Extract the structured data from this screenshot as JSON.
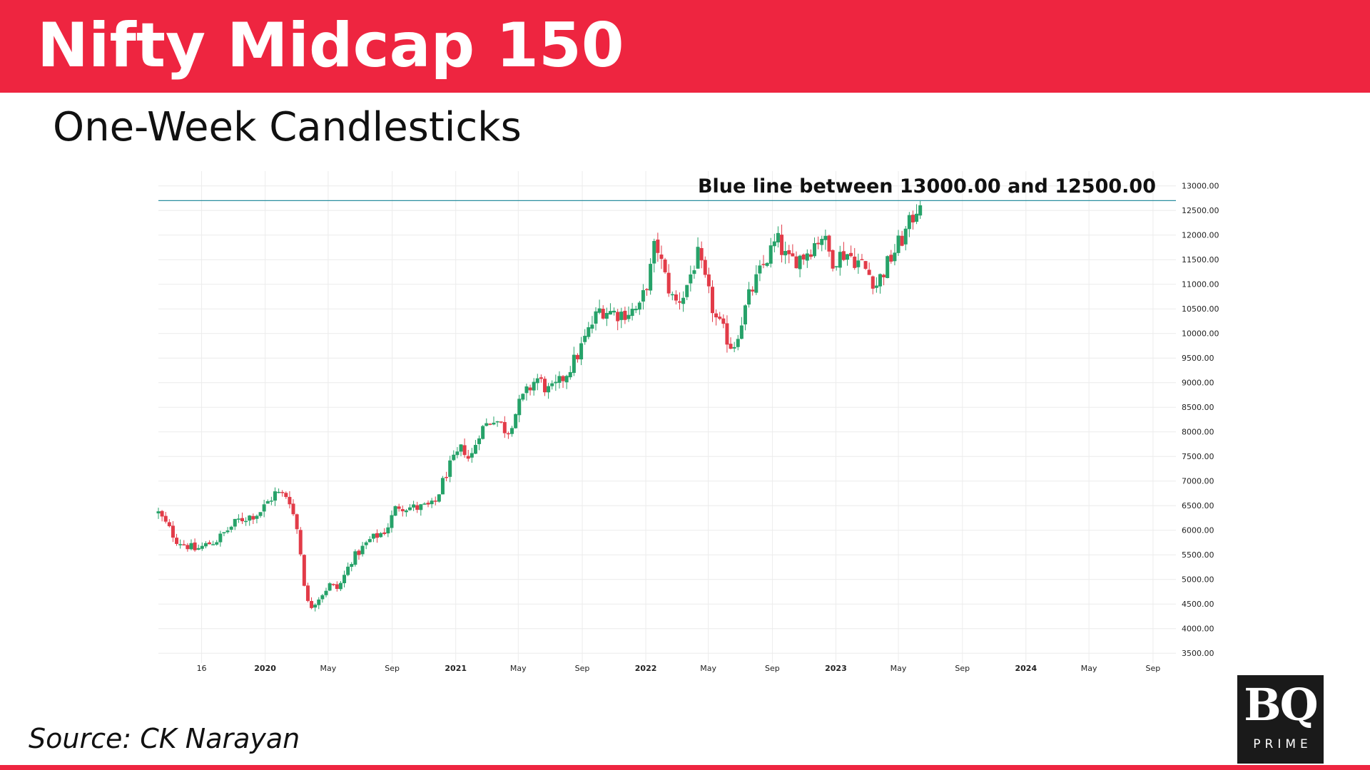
{
  "brand": {
    "header_color": "#ee2540",
    "bottom_bar_color": "#ee2540",
    "logo_text": "BQ",
    "logo_subtext": "PRIME"
  },
  "header": {
    "title": "Nifty Midcap 150"
  },
  "subtitle": "One-Week Candlesticks",
  "footer": {
    "source": "Source: CK Narayan"
  },
  "chart_data": {
    "type": "candlestick",
    "title": "",
    "xlabel": "",
    "ylabel": "",
    "ylim": [
      3300,
      13300
    ],
    "y_ticks": [
      3500,
      4000,
      4500,
      5000,
      5500,
      6000,
      6500,
      7000,
      7500,
      8000,
      8500,
      9000,
      9500,
      10000,
      10500,
      11000,
      11500,
      12000,
      12500,
      13000
    ],
    "x_axis_labels": [
      "16",
      "2020",
      "May",
      "Sep",
      "2021",
      "May",
      "Sep",
      "2022",
      "May",
      "Sep",
      "2023",
      "May",
      "Sep",
      "2024",
      "May",
      "Sep"
    ],
    "x_tick_dates": [
      "2019-09-01",
      "2020-01-01",
      "2020-05-01",
      "2020-09-01",
      "2021-01-01",
      "2021-05-01",
      "2021-09-01",
      "2022-01-01",
      "2022-05-01",
      "2022-09-01",
      "2023-01-01",
      "2023-05-01",
      "2023-09-01",
      "2024-01-01",
      "2024-05-01",
      "2024-09-01"
    ],
    "x_range": [
      "2019-06-10",
      "2024-10-15"
    ],
    "grid": true,
    "up_color": "#26a269",
    "down_color": "#e23b48",
    "horizontal_line": {
      "value": 12700,
      "color": "#2a8fa0"
    },
    "annotation": "Blue line between 13000.00 and 12500.00",
    "anchors": [
      [
        "2019-06-10",
        6350
      ],
      [
        "2019-07-15",
        5800
      ],
      [
        "2019-08-20",
        5600
      ],
      [
        "2019-09-30",
        5800
      ],
      [
        "2019-11-10",
        6200
      ],
      [
        "2019-12-20",
        6350
      ],
      [
        "2020-01-20",
        6750
      ],
      [
        "2020-02-15",
        6700
      ],
      [
        "2020-03-05",
        5900
      ],
      [
        "2020-03-15",
        5000
      ],
      [
        "2020-03-25",
        4400
      ],
      [
        "2020-04-10",
        4600
      ],
      [
        "2020-05-05",
        4900
      ],
      [
        "2020-05-20",
        4800
      ],
      [
        "2020-06-15",
        5400
      ],
      [
        "2020-07-20",
        5800
      ],
      [
        "2020-08-20",
        6000
      ],
      [
        "2020-09-10",
        6500
      ],
      [
        "2020-10-15",
        6450
      ],
      [
        "2020-11-20",
        6500
      ],
      [
        "2020-12-15",
        7200
      ],
      [
        "2021-01-15",
        7700
      ],
      [
        "2021-01-28",
        7400
      ],
      [
        "2021-02-15",
        8000
      ],
      [
        "2021-03-15",
        8300
      ],
      [
        "2021-04-10",
        8000
      ],
      [
        "2021-05-05",
        8600
      ],
      [
        "2021-06-05",
        9100
      ],
      [
        "2021-07-01",
        8800
      ],
      [
        "2021-07-20",
        9000
      ],
      [
        "2021-08-20",
        9500
      ],
      [
        "2021-09-20",
        10200
      ],
      [
        "2021-10-05",
        10500
      ],
      [
        "2021-11-10",
        10400
      ],
      [
        "2021-12-20",
        10500
      ],
      [
        "2022-01-10",
        11300
      ],
      [
        "2022-01-20",
        11900
      ],
      [
        "2022-02-05",
        11200
      ],
      [
        "2022-02-25",
        10600
      ],
      [
        "2022-03-15",
        10800
      ],
      [
        "2022-04-10",
        11600
      ],
      [
        "2022-05-15",
        10300
      ],
      [
        "2022-06-17",
        9700
      ],
      [
        "2022-07-20",
        10800
      ],
      [
        "2022-08-20",
        11500
      ],
      [
        "2022-09-10",
        11900
      ],
      [
        "2022-10-01",
        11450
      ],
      [
        "2022-11-01",
        11600
      ],
      [
        "2022-12-05",
        12000
      ],
      [
        "2022-12-25",
        11500
      ],
      [
        "2023-01-20",
        11650
      ],
      [
        "2023-02-20",
        11400
      ],
      [
        "2023-03-20",
        11000
      ],
      [
        "2023-04-20",
        11600
      ],
      [
        "2023-05-20",
        12150
      ],
      [
        "2023-06-12",
        12750
      ]
    ]
  }
}
